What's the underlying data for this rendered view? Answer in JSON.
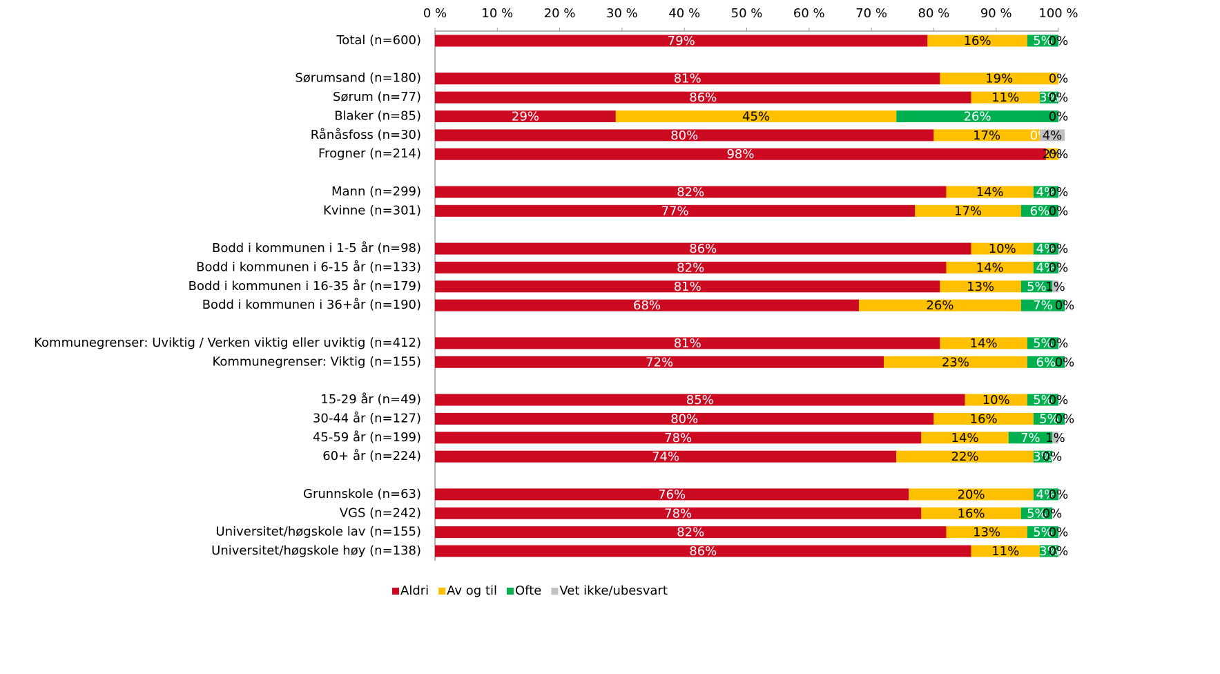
{
  "chart_data": {
    "type": "stacked_bar_horizontal",
    "categories": [
      "Total (n=600)",
      null,
      "Sørumsand (n=180)",
      "Sørum (n=77)",
      "Blaker (n=85)",
      "Rånåsfoss (n=30)",
      "Frogner (n=214)",
      null,
      "Mann (n=299)",
      "Kvinne (n=301)",
      null,
      "Bodd i kommunen i 1-5 år (n=98)",
      "Bodd i kommunen i 6-15 år (n=133)",
      "Bodd i kommunen i 16-35 år (n=179)",
      "Bodd i kommunen i 36+år (n=190)",
      null,
      "Kommunegrenser: Uviktig / Verken viktig eller uviktig (n=412)",
      "Kommunegrenser: Viktig (n=155)",
      null,
      "15-29 år (n=49)",
      "30-44 år (n=127)",
      "45-59 år (n=199)",
      "60+ år (n=224)",
      null,
      "Grunnskole (n=63)",
      "VGS (n=242)",
      "Universitet/høgskole lav (n=155)",
      "Universitet/høgskole høy (n=138)"
    ],
    "series": [
      {
        "name": "Aldri",
        "color": "#cc0a21",
        "label_color": "#ffffff",
        "values": [
          79,
          null,
          81,
          86,
          29,
          80,
          98,
          null,
          82,
          77,
          null,
          86,
          82,
          81,
          68,
          null,
          81,
          72,
          null,
          85,
          80,
          78,
          74,
          null,
          76,
          78,
          82,
          86
        ],
        "value_labels": [
          "79%",
          null,
          "81%",
          "86%",
          "29%",
          "80%",
          "98%",
          null,
          "82%",
          "77%",
          null,
          "86%",
          "82%",
          "81%",
          "68%",
          null,
          "81%",
          "72%",
          null,
          "85%",
          "80%",
          "78%",
          "74%",
          null,
          "76%",
          "78%",
          "82%",
          "86%"
        ]
      },
      {
        "name": "Av og til",
        "color": "#ffc000",
        "label_color": "#000000",
        "values": [
          16,
          null,
          19,
          11,
          45,
          17,
          2,
          null,
          14,
          17,
          null,
          10,
          14,
          13,
          26,
          null,
          14,
          23,
          null,
          10,
          16,
          14,
          22,
          null,
          20,
          16,
          13,
          11
        ],
        "value_labels": [
          "16%",
          null,
          "19%",
          "11%",
          "45%",
          "17%",
          "2%",
          null,
          "14%",
          "17%",
          null,
          "10%",
          "14%",
          "13%",
          "26%",
          null,
          "14%",
          "23%",
          null,
          "10%",
          "16%",
          "14%",
          "22%",
          null,
          "20%",
          "16%",
          "13%",
          "11%"
        ]
      },
      {
        "name": "Ofte",
        "color": "#00b050",
        "label_color": "#ffffff",
        "values": [
          5,
          null,
          0,
          3,
          26,
          0,
          0,
          null,
          4,
          6,
          null,
          4,
          4,
          5,
          7,
          null,
          5,
          6,
          null,
          5,
          5,
          7,
          3,
          null,
          4,
          5,
          5,
          3
        ],
        "value_labels": [
          "5%",
          null,
          "0%",
          "3%",
          "26%",
          "0%",
          "0%",
          null,
          "4%",
          "6%",
          null,
          "4%",
          "4%",
          "5%",
          "7%",
          null,
          "5%",
          "6%",
          null,
          "5%",
          "5%",
          "7%",
          "3%",
          null,
          "4%",
          "5%",
          "5%",
          "3%"
        ]
      },
      {
        "name": "Vet ikke/ubesvart",
        "color": "#c0c0c0",
        "label_color": "#000000",
        "values": [
          0,
          null,
          0,
          0,
          0,
          4,
          0,
          null,
          0,
          0,
          null,
          0,
          0,
          1,
          0,
          null,
          0,
          0,
          null,
          0,
          0,
          1,
          0,
          null,
          0,
          0,
          0,
          0
        ],
        "value_labels": [
          "0%",
          null,
          "0%",
          "0%",
          "0%",
          "4%",
          "0%",
          null,
          "0%",
          "0%",
          null,
          "0%",
          "0%",
          "1%",
          "0%",
          null,
          "0%",
          "0%",
          null,
          "0%",
          "0%",
          "1%",
          "0%",
          null,
          "0%",
          "0%",
          "0%",
          "0%"
        ]
      }
    ],
    "xlim": [
      0,
      100
    ],
    "xticks": [
      {
        "value": 0,
        "label": "0 %"
      },
      {
        "value": 10,
        "label": "10 %"
      },
      {
        "value": 20,
        "label": "20 %"
      },
      {
        "value": 30,
        "label": "30 %"
      },
      {
        "value": 40,
        "label": "40 %"
      },
      {
        "value": 50,
        "label": "50 %"
      },
      {
        "value": 60,
        "label": "60 %"
      },
      {
        "value": 70,
        "label": "70 %"
      },
      {
        "value": 80,
        "label": "80 %"
      },
      {
        "value": 90,
        "label": "90 %"
      },
      {
        "value": 100,
        "label": "100 %"
      }
    ],
    "legend": "bottom"
  }
}
